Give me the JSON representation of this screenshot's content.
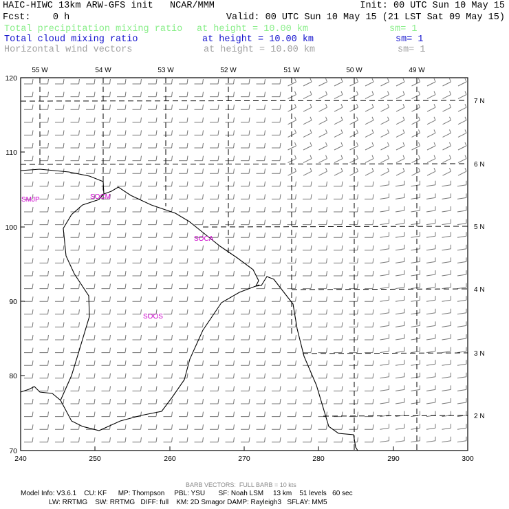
{
  "header": {
    "line1_left": "HAIC-HIWC 13km ARW-GFS init   NCAR/MMM",
    "line1_right": "Init: 00 UTC Sun 10 May 15",
    "line2_left": "Fcst:    0 h",
    "line2_right": "Valid: 00 UTC Sun 10 May 15 (21 LST Sat 09 May 15)",
    "fields": [
      {
        "name": "Total precipitation mixing ratio",
        "height": "at height = 10.00 km",
        "sm": "sm= 1",
        "color": "#88ee88"
      },
      {
        "name": "Total cloud mixing ratio",
        "height": "at height = 10.00 km",
        "sm": "sm= 1",
        "color": "#1010cc"
      },
      {
        "name": "Horizontal wind vectors",
        "height": "at height = 10.00 km",
        "sm": "sm= 1",
        "color": "#a0a0a0"
      }
    ]
  },
  "map": {
    "top_lon_labels": [
      "55 W",
      "54 W",
      "53 W",
      "52 W",
      "51 W",
      "50 W",
      "49 W"
    ],
    "right_lat_labels": [
      "7 N",
      "6 N",
      "5 N",
      "4 N",
      "3 N",
      "2 N"
    ],
    "left_axis_ticks": [
      "120",
      "110",
      "100",
      "90",
      "80",
      "70"
    ],
    "bottom_axis_ticks": [
      "240",
      "250",
      "260",
      "270",
      "280",
      "290",
      "300"
    ],
    "station_labels": [
      "SMJP",
      "SOCM",
      "SOCA",
      "SOOS"
    ],
    "station_color": "#cc00cc",
    "barb_color": "#777777"
  },
  "footer": {
    "barb_note": "BARB VECTORS:  FULL BARB = 10 kts",
    "model_line1": "Model Info: V3.6.1    CU: KF      MP: Thompson     PBL: YSU       SF: Noah LSM     13 km    51 levels   60 sec",
    "model_line2": "LW: RRTMG    SW: RRTMG   DIFF: full    KM: 2D Smagor DAMP: Rayleigh3   SFLAY: MM5"
  }
}
